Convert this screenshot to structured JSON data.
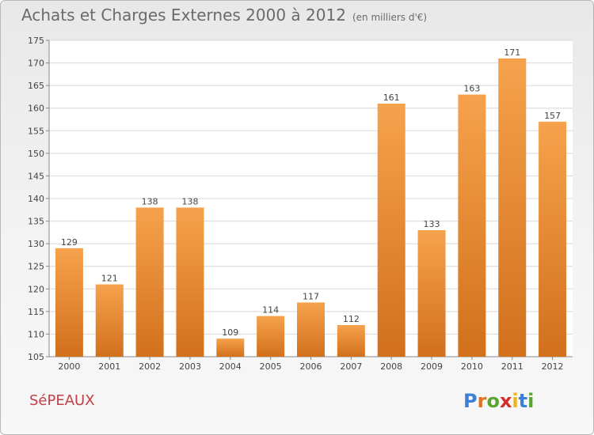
{
  "header": {
    "title": "Achats et Charges Externes 2000 à 2012",
    "unit": "(en milliers d'€)"
  },
  "footer": {
    "commune": "SéPEAUX",
    "logo_text": "Proxiti"
  },
  "colors": {
    "bar_light": "#f6a24c",
    "bar_dark": "#d2701c",
    "grid": "#d8d8d8",
    "title": "#6a6a6a",
    "commune": "#c0404a",
    "logo_letters": [
      "#3b7fd6",
      "#e0731f",
      "#5aa532",
      "#d62d2d",
      "#f0b21c",
      "#3b7fd6",
      "#5aa532"
    ]
  },
  "chart_data": {
    "type": "bar",
    "title": "Achats et Charges Externes 2000 à 2012",
    "subtitle": "(en milliers d'€)",
    "categories": [
      "2000",
      "2001",
      "2002",
      "2003",
      "2004",
      "2005",
      "2006",
      "2007",
      "2008",
      "2009",
      "2010",
      "2011",
      "2012"
    ],
    "values": [
      129,
      121,
      138,
      138,
      109,
      114,
      117,
      112,
      161,
      133,
      163,
      171,
      157
    ],
    "ylim": [
      105,
      175
    ],
    "yticks": [
      105,
      110,
      115,
      120,
      125,
      130,
      135,
      140,
      145,
      150,
      155,
      160,
      165,
      170,
      175
    ],
    "grid": true,
    "xlabel": "",
    "ylabel": ""
  }
}
